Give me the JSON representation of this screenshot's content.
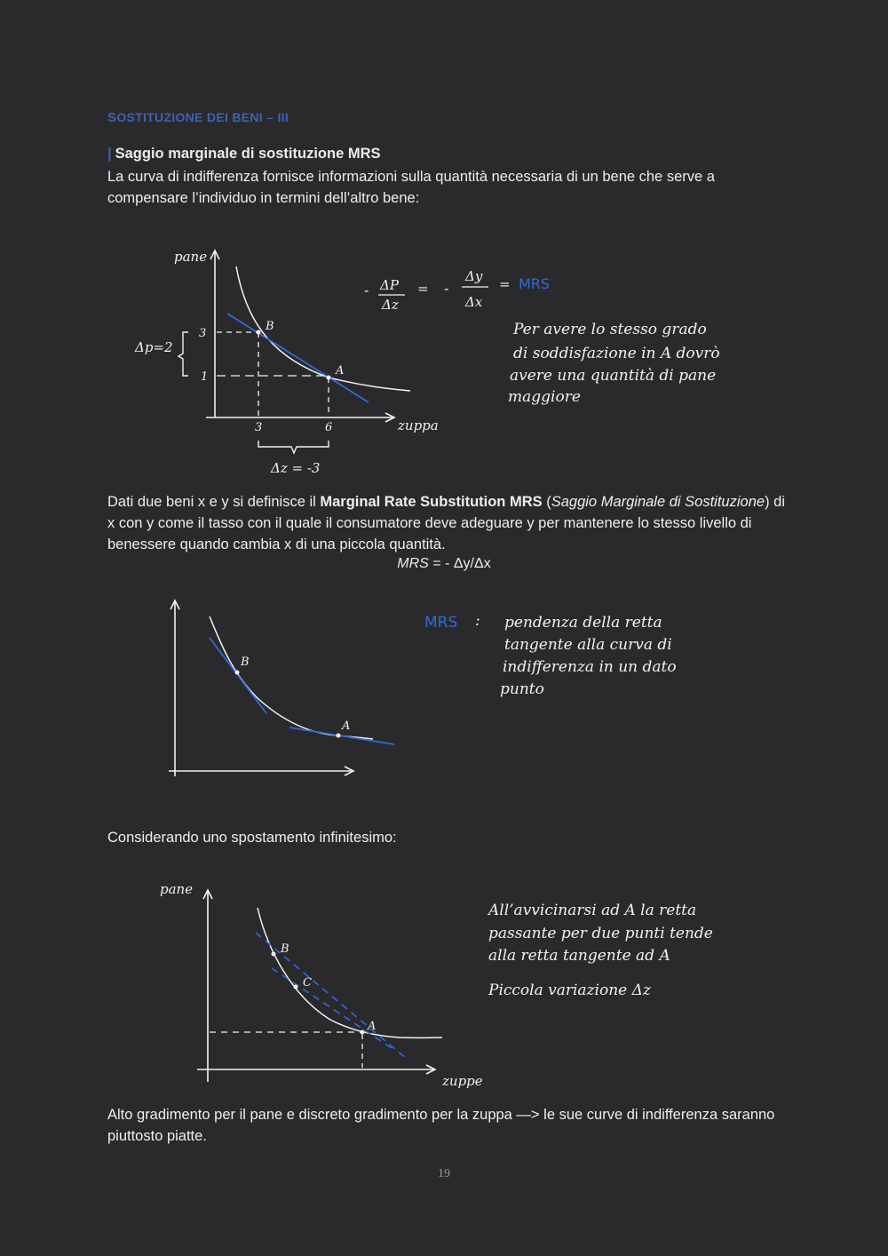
{
  "section_title": {
    "first": "S",
    "rest": "OSTITUZIONE DEI BENI",
    "suffix": " – III"
  },
  "subheading": {
    "bar": "|",
    "text": "Saggio marginale di sostituzione MRS"
  },
  "intro_paragraph": "La curva di indifferenza fornisce informazioni sulla quantità necessaria di un bene che serve a compensare l’individuo in termini dell’altro bene:",
  "figure1": {
    "y_axis_label": "pane",
    "x_axis_label": "zuppa",
    "y_ticks": [
      "3",
      "1"
    ],
    "x_ticks": [
      "3",
      "6"
    ],
    "point_b": "B",
    "point_a": "A",
    "delta_p": "Δp=2",
    "delta_z": "Δz = -3",
    "formula_left": "-",
    "formula_dp": "ΔP",
    "formula_dz": "Δz",
    "formula_eq1": "=",
    "formula_minus": "-",
    "formula_dy": "Δy",
    "formula_dx": "Δx",
    "formula_eq2": "=",
    "formula_mrs": "MRS",
    "note": [
      "Per avere lo stesso grado",
      "di soddisfazione in A dovrò",
      "avere una quantità di pane",
      "maggiore"
    ]
  },
  "definition": {
    "before": "Dati due beni x e y si definisce il ",
    "bold": "Marginal Rate Substitution MRS",
    "paren_open": " (",
    "italic": "Saggio Marginale di Sostituzione",
    "after": ") di x con y come il tasso con il quale il consumatore deve adeguare y per mantenere lo stesso livello di benessere quando cambia x di una piccola quantità."
  },
  "mrs_formula": {
    "italic": "MRS",
    "rest": " = - Δy/Δx"
  },
  "figure2": {
    "point_b": "B",
    "point_a": "A",
    "note_label": "MRS",
    "note_colon": ":",
    "note": [
      "pendenza della retta",
      "tangente alla curva di",
      "indifferenza in un dato",
      "punto"
    ]
  },
  "infinitesimal_text": "Considerando uno spostamento infinitesimo:",
  "figure3": {
    "y_axis_label": "pane",
    "x_axis_label": "zuppe",
    "point_b": "B",
    "point_c": "C",
    "point_a": "A",
    "note": [
      "All’avvicinarsi ad A la retta",
      "passante per due punti tende",
      "alla retta tangente ad A",
      "",
      "Piccola variazione Δz"
    ]
  },
  "closing_paragraph": "Alto gradimento per il pane e discreto gradimento per la zuppa —> le sue curve di indifferenza saranno piuttosto piatte.",
  "page_number": "19",
  "colors": {
    "accent_blue": "#3f63b0",
    "ink_blue": "#2f6bd8",
    "background": "#2a2a2c",
    "text": "#eeeeee"
  }
}
